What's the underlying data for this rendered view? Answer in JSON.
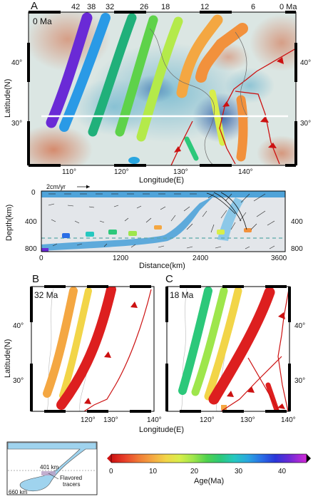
{
  "panels": {
    "A": {
      "letter": "A",
      "time": "0 Ma",
      "top_ages": [
        "42",
        "38",
        "32",
        "26",
        "18",
        "12",
        "6",
        "0 Ma"
      ],
      "lat_left": [
        "40°",
        "30°"
      ],
      "lat_right": [
        "40°",
        "30°"
      ],
      "lon_ticks": [
        "110°",
        "120°",
        "130°",
        "140°"
      ],
      "xlabel": "Longitude(E)",
      "ylabel": "Latitude(N)"
    },
    "section": {
      "ylabel": "Depth(km)",
      "xlabel": "Distance(km)",
      "velocity_scale": "2cm/yr",
      "depth_left": [
        "0",
        "400",
        "800"
      ],
      "depth_right": [
        "400",
        "800"
      ],
      "dist_ticks": [
        "0",
        "1200",
        "2400",
        "3600"
      ]
    },
    "B": {
      "letter": "B",
      "time": "32 Ma",
      "lat_left": [
        "40°",
        "30°"
      ],
      "lon_ticks": [
        "120°",
        "130°",
        "140°"
      ],
      "ylabel": "Latitude(N)"
    },
    "C": {
      "letter": "C",
      "time": "18 Ma",
      "lat_right": [
        "40°",
        "30°"
      ],
      "lon_ticks": [
        "120°",
        "130°",
        "140°"
      ],
      "xlabel": "Longitude(E)"
    }
  },
  "inset": {
    "depth_401": "401 km",
    "depth_660": "660 km",
    "tracer_label_1": "Flavored",
    "tracer_label_2": "tracers"
  },
  "colorbar": {
    "ticks": [
      "0",
      "10",
      "20",
      "30",
      "40"
    ],
    "label": "Age(Ma)",
    "colors": [
      "#cc1111",
      "#e8402a",
      "#f07a36",
      "#f4a742",
      "#f2d548",
      "#d8ee4a",
      "#9ee64c",
      "#4fd24e",
      "#2cc87a",
      "#26c8c0",
      "#2aa6e0",
      "#2a6ee6",
      "#2a36d8",
      "#6a2ad6",
      "#a22ad6",
      "#d22ad6"
    ]
  }
}
